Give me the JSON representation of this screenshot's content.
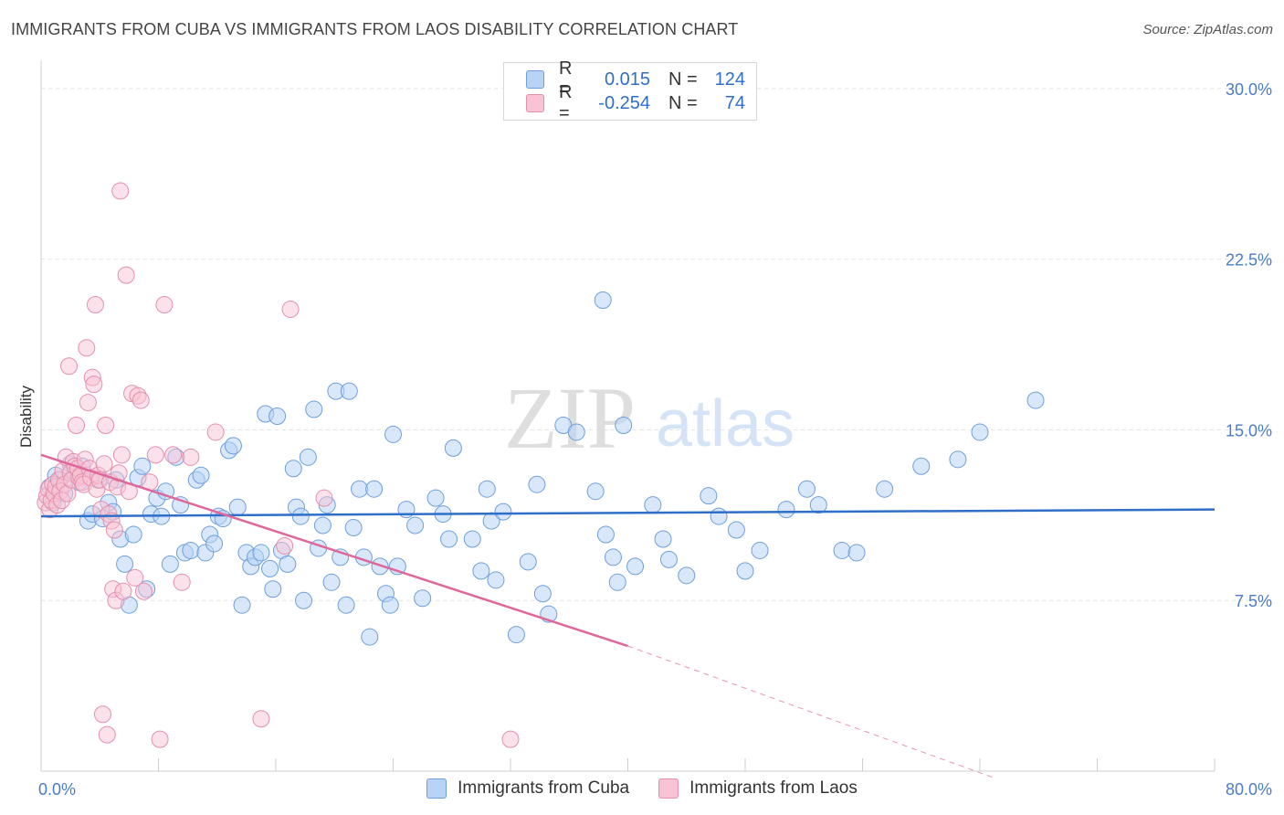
{
  "title": "IMMIGRANTS FROM CUBA VS IMMIGRANTS FROM LAOS DISABILITY CORRELATION CHART",
  "source": "Source: ZipAtlas.com",
  "watermark": {
    "zip": "ZIP",
    "atlas": "atlas"
  },
  "colors": {
    "cuba_fill": "#b8d3f5",
    "cuba_stroke": "#6e9fdc",
    "cuba_line": "#2f6fc8",
    "laos_fill": "#f8c3d4",
    "laos_stroke": "#e58fad",
    "laos_line": "#e0679a",
    "axis_label": "#4a7cc7"
  },
  "legend": {
    "r_label": "R =",
    "n_label": "N =",
    "cuba": {
      "r": "0.015",
      "n": "124"
    },
    "laos": {
      "r": "-0.254",
      "n": "74"
    }
  },
  "bottom_legend": {
    "cuba": "Immigrants from Cuba",
    "laos": "Immigrants from Laos"
  },
  "chart_data": {
    "type": "scatter",
    "xlabel": "",
    "ylabel": "Disability",
    "xlim": [
      0,
      80
    ],
    "ylim": [
      0,
      31
    ],
    "x_tick_labels": [
      "0.0%",
      "80.0%"
    ],
    "y_ticks": [
      7.5,
      15.0,
      22.5,
      30.0
    ],
    "y_tick_labels": [
      "7.5%",
      "15.0%",
      "22.5%",
      "30.0%"
    ],
    "grid": true,
    "legend_position": "top-center",
    "series": [
      {
        "name": "Immigrants from Cuba",
        "trend": {
          "x": [
            0,
            80
          ],
          "y": [
            11.2,
            11.5
          ]
        },
        "points": [
          [
            0.6,
            12.5
          ],
          [
            0.8,
            11.8
          ],
          [
            1.0,
            13.0
          ],
          [
            1.3,
            12.8
          ],
          [
            1.6,
            12.2
          ],
          [
            2.0,
            13.5
          ],
          [
            2.3,
            13.1
          ],
          [
            2.6,
            12.7
          ],
          [
            2.8,
            13.4
          ],
          [
            3.2,
            11.0
          ],
          [
            3.5,
            11.3
          ],
          [
            3.9,
            12.8
          ],
          [
            4.2,
            11.1
          ],
          [
            4.6,
            11.8
          ],
          [
            4.9,
            11.4
          ],
          [
            5.1,
            12.8
          ],
          [
            5.4,
            10.2
          ],
          [
            5.7,
            9.1
          ],
          [
            6.0,
            7.3
          ],
          [
            6.3,
            10.4
          ],
          [
            6.6,
            12.9
          ],
          [
            6.9,
            13.4
          ],
          [
            7.2,
            8.0
          ],
          [
            7.5,
            11.3
          ],
          [
            7.9,
            12.0
          ],
          [
            8.2,
            11.2
          ],
          [
            8.5,
            12.3
          ],
          [
            8.8,
            9.1
          ],
          [
            9.2,
            13.8
          ],
          [
            9.5,
            11.7
          ],
          [
            9.8,
            9.6
          ],
          [
            10.2,
            9.7
          ],
          [
            10.6,
            12.8
          ],
          [
            10.9,
            13.0
          ],
          [
            11.2,
            9.6
          ],
          [
            11.5,
            10.4
          ],
          [
            11.8,
            10.0
          ],
          [
            12.1,
            11.2
          ],
          [
            12.4,
            11.1
          ],
          [
            12.8,
            14.1
          ],
          [
            13.1,
            14.3
          ],
          [
            13.4,
            11.6
          ],
          [
            13.7,
            7.3
          ],
          [
            14.0,
            9.6
          ],
          [
            14.3,
            9.0
          ],
          [
            14.6,
            9.4
          ],
          [
            15.0,
            9.6
          ],
          [
            15.3,
            15.7
          ],
          [
            15.6,
            8.9
          ],
          [
            15.8,
            8.0
          ],
          [
            16.1,
            15.6
          ],
          [
            16.4,
            9.7
          ],
          [
            16.8,
            9.1
          ],
          [
            17.2,
            13.3
          ],
          [
            17.4,
            11.6
          ],
          [
            17.7,
            11.2
          ],
          [
            17.9,
            7.5
          ],
          [
            18.2,
            13.8
          ],
          [
            18.6,
            15.9
          ],
          [
            18.9,
            9.8
          ],
          [
            19.2,
            10.8
          ],
          [
            19.5,
            11.7
          ],
          [
            19.8,
            8.3
          ],
          [
            20.1,
            16.7
          ],
          [
            20.4,
            9.4
          ],
          [
            20.8,
            7.3
          ],
          [
            21.0,
            16.7
          ],
          [
            21.3,
            10.7
          ],
          [
            21.7,
            12.4
          ],
          [
            22.0,
            9.4
          ],
          [
            22.4,
            5.9
          ],
          [
            22.7,
            12.4
          ],
          [
            23.1,
            9.0
          ],
          [
            23.5,
            7.8
          ],
          [
            23.8,
            7.3
          ],
          [
            24.0,
            14.8
          ],
          [
            24.3,
            9.0
          ],
          [
            24.9,
            11.5
          ],
          [
            25.5,
            10.8
          ],
          [
            26.0,
            7.6
          ],
          [
            26.9,
            12.0
          ],
          [
            27.4,
            11.3
          ],
          [
            27.8,
            10.2
          ],
          [
            28.1,
            14.2
          ],
          [
            29.4,
            10.2
          ],
          [
            30.0,
            8.8
          ],
          [
            30.4,
            12.4
          ],
          [
            30.7,
            11.0
          ],
          [
            31.0,
            8.4
          ],
          [
            31.5,
            11.4
          ],
          [
            32.4,
            6.0
          ],
          [
            33.2,
            9.2
          ],
          [
            33.8,
            12.6
          ],
          [
            34.2,
            7.8
          ],
          [
            34.6,
            6.9
          ],
          [
            35.6,
            15.2
          ],
          [
            36.5,
            14.9
          ],
          [
            37.8,
            12.3
          ],
          [
            38.3,
            20.7
          ],
          [
            38.5,
            10.4
          ],
          [
            39.0,
            9.4
          ],
          [
            39.3,
            8.3
          ],
          [
            39.7,
            15.2
          ],
          [
            40.5,
            9.0
          ],
          [
            41.7,
            11.7
          ],
          [
            42.4,
            10.2
          ],
          [
            42.8,
            9.3
          ],
          [
            44.0,
            8.6
          ],
          [
            45.5,
            12.1
          ],
          [
            46.2,
            11.2
          ],
          [
            47.4,
            10.6
          ],
          [
            48.0,
            8.8
          ],
          [
            49.0,
            9.7
          ],
          [
            50.8,
            11.5
          ],
          [
            52.2,
            12.4
          ],
          [
            53.0,
            11.7
          ],
          [
            54.6,
            9.7
          ],
          [
            55.6,
            9.6
          ],
          [
            57.5,
            12.4
          ],
          [
            60.0,
            13.4
          ],
          [
            62.5,
            13.7
          ],
          [
            64.0,
            14.9
          ],
          [
            67.8,
            16.3
          ]
        ]
      },
      {
        "name": "Immigrants from Laos",
        "trend": {
          "x": [
            0,
            40
          ],
          "y": [
            13.9,
            5.5
          ]
        },
        "trend_dashed": {
          "x": [
            40,
            65
          ],
          "y": [
            5.5,
            -0.3
          ]
        },
        "points": [
          [
            0.3,
            11.8
          ],
          [
            0.4,
            12.1
          ],
          [
            0.5,
            12.4
          ],
          [
            0.6,
            11.5
          ],
          [
            0.7,
            11.9
          ],
          [
            0.8,
            12.6
          ],
          [
            0.9,
            12.2
          ],
          [
            1.0,
            12.5
          ],
          [
            1.1,
            11.7
          ],
          [
            1.2,
            12.8
          ],
          [
            1.3,
            12.3
          ],
          [
            1.4,
            11.9
          ],
          [
            1.5,
            13.2
          ],
          [
            1.6,
            12.6
          ],
          [
            1.7,
            13.8
          ],
          [
            1.8,
            12.2
          ],
          [
            1.9,
            17.8
          ],
          [
            2.0,
            13.1
          ],
          [
            2.1,
            12.8
          ],
          [
            2.2,
            13.6
          ],
          [
            2.3,
            13.4
          ],
          [
            2.4,
            15.2
          ],
          [
            2.5,
            13.3
          ],
          [
            2.6,
            12.9
          ],
          [
            2.7,
            13.0
          ],
          [
            2.8,
            12.7
          ],
          [
            2.9,
            12.6
          ],
          [
            3.0,
            13.7
          ],
          [
            3.1,
            18.6
          ],
          [
            3.2,
            16.2
          ],
          [
            3.3,
            13.3
          ],
          [
            3.4,
            12.9
          ],
          [
            3.5,
            17.3
          ],
          [
            3.6,
            17.0
          ],
          [
            3.7,
            20.5
          ],
          [
            3.8,
            12.4
          ],
          [
            3.9,
            13.0
          ],
          [
            4.0,
            12.8
          ],
          [
            4.1,
            11.5
          ],
          [
            4.2,
            2.5
          ],
          [
            4.3,
            13.5
          ],
          [
            4.4,
            15.2
          ],
          [
            4.5,
            1.6
          ],
          [
            4.6,
            11.3
          ],
          [
            4.7,
            12.7
          ],
          [
            4.8,
            11.0
          ],
          [
            4.9,
            8.0
          ],
          [
            5.0,
            10.6
          ],
          [
            5.1,
            7.5
          ],
          [
            5.2,
            12.5
          ],
          [
            5.3,
            13.1
          ],
          [
            5.4,
            25.5
          ],
          [
            5.5,
            13.9
          ],
          [
            5.6,
            7.9
          ],
          [
            5.8,
            21.8
          ],
          [
            6.0,
            12.3
          ],
          [
            6.2,
            16.6
          ],
          [
            6.4,
            8.5
          ],
          [
            6.6,
            16.5
          ],
          [
            6.8,
            16.3
          ],
          [
            7.0,
            7.9
          ],
          [
            7.4,
            12.7
          ],
          [
            7.8,
            13.9
          ],
          [
            8.1,
            1.4
          ],
          [
            8.4,
            20.5
          ],
          [
            9.0,
            13.9
          ],
          [
            9.6,
            8.3
          ],
          [
            10.2,
            13.8
          ],
          [
            11.9,
            14.9
          ],
          [
            15.0,
            2.3
          ],
          [
            16.6,
            9.9
          ],
          [
            17.0,
            20.3
          ],
          [
            19.3,
            12.0
          ],
          [
            32.0,
            1.4
          ]
        ]
      }
    ]
  }
}
